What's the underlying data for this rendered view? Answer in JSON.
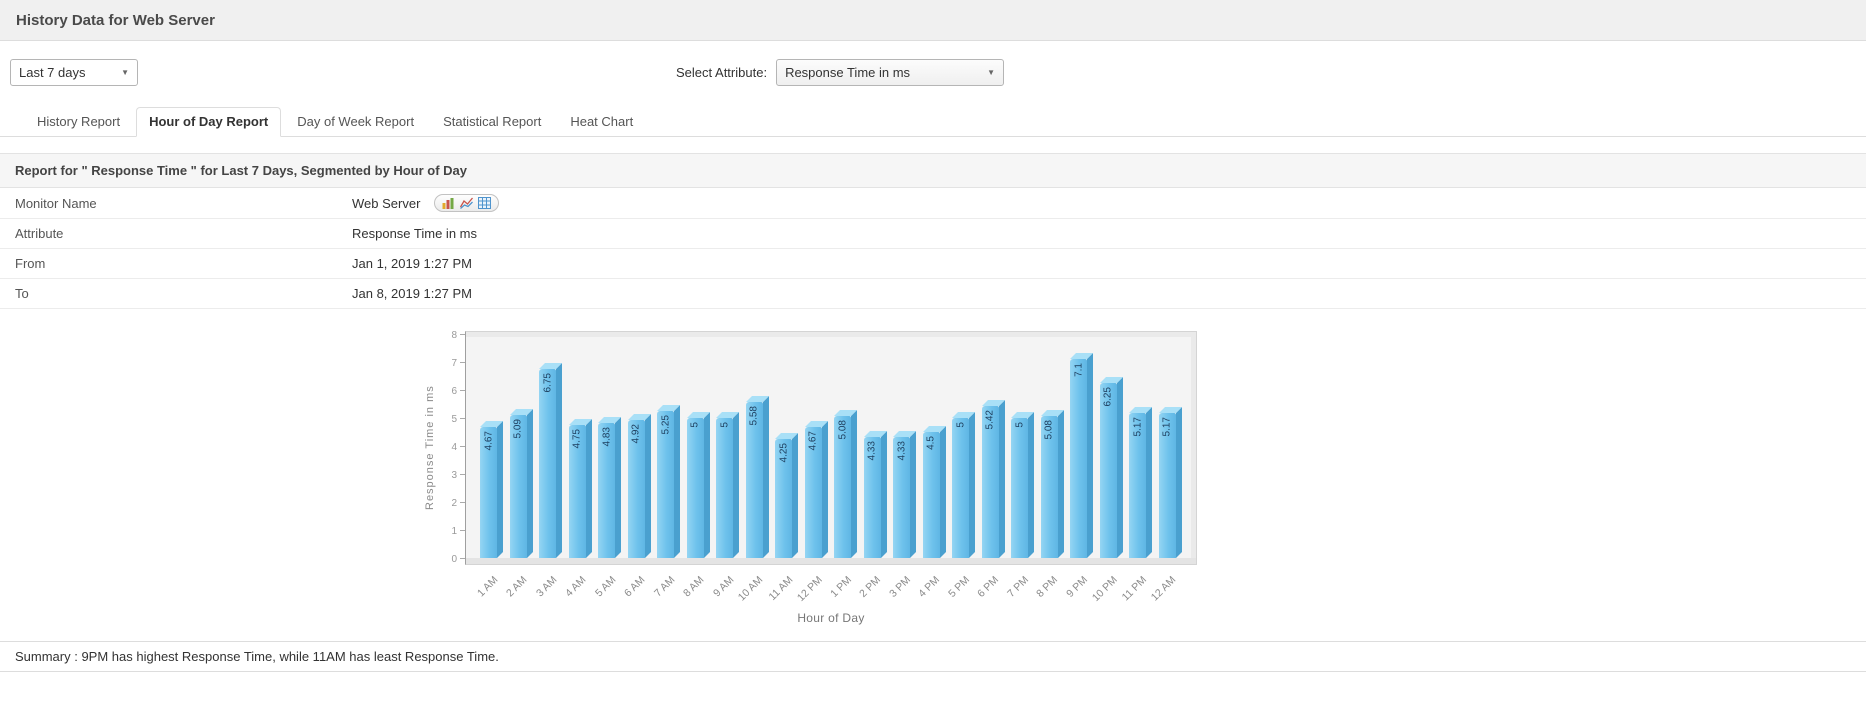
{
  "header": {
    "title": "History Data for Web Server"
  },
  "controls": {
    "period_select": {
      "value": "Last 7 days"
    },
    "attribute_label": "Select Attribute:",
    "attribute_select": {
      "value": "Response Time in ms"
    }
  },
  "tabs": [
    {
      "label": "History Report",
      "active": false
    },
    {
      "label": "Hour of Day Report",
      "active": true
    },
    {
      "label": "Day of Week Report",
      "active": false
    },
    {
      "label": "Statistical Report",
      "active": false
    },
    {
      "label": "Heat Chart",
      "active": false
    }
  ],
  "report": {
    "title": "Report for \" Response Time \" for Last 7 Days, Segmented by Hour of Day",
    "rows": [
      {
        "label": "Monitor Name",
        "value": "Web Server",
        "has_icons": true
      },
      {
        "label": "Attribute",
        "value": "Response Time in ms",
        "has_icons": false
      },
      {
        "label": "From",
        "value": "Jan 1, 2019 1:27 PM",
        "has_icons": false
      },
      {
        "label": "To",
        "value": "Jan 8, 2019 1:27 PM",
        "has_icons": false
      }
    ],
    "icons": [
      "bar-graph-icon",
      "line-graph-icon",
      "table-icon"
    ]
  },
  "chart_data": {
    "type": "bar",
    "categories": [
      "1 AM",
      "2 AM",
      "3 AM",
      "4 AM",
      "5 AM",
      "6 AM",
      "7 AM",
      "8 AM",
      "9 AM",
      "10 AM",
      "11 AM",
      "12 PM",
      "1 PM",
      "2 PM",
      "3 PM",
      "4 PM",
      "5 PM",
      "6 PM",
      "7 PM",
      "8 PM",
      "9 PM",
      "10 PM",
      "11 PM",
      "12 AM"
    ],
    "values": [
      4.67,
      5.09,
      6.75,
      4.75,
      4.83,
      4.92,
      5.25,
      5,
      5,
      5.58,
      4.25,
      4.67,
      5.08,
      4.33,
      4.33,
      4.5,
      5,
      5.42,
      5,
      5.08,
      7.1,
      6.25,
      5.17,
      5.17
    ],
    "labels": [
      "4.67",
      "5.09",
      "6.75",
      "4.75",
      "4.83",
      "4.92",
      "5.25",
      "5",
      "5",
      "5.58",
      "4.25",
      "4.67",
      "5.08",
      "4.33",
      "4.33",
      "4.5",
      "5",
      "5.42",
      "5",
      "5.08",
      "7.1",
      "6.25",
      "5.17",
      "5.17"
    ],
    "title": "",
    "xlabel": "Hour of Day",
    "ylabel": "Response Time in ms",
    "ylim": [
      0,
      8
    ],
    "yticks": [
      0,
      1,
      2,
      3,
      4,
      5,
      6,
      7,
      8
    ],
    "legend": "off",
    "grid": "off",
    "bar_color": "#6ec2ec",
    "bar_side_color": "#4aa0cf",
    "bar_top_color": "#a9e0f7"
  },
  "summary": "Summary : 9PM has highest Response Time, while 11AM has least Response Time."
}
